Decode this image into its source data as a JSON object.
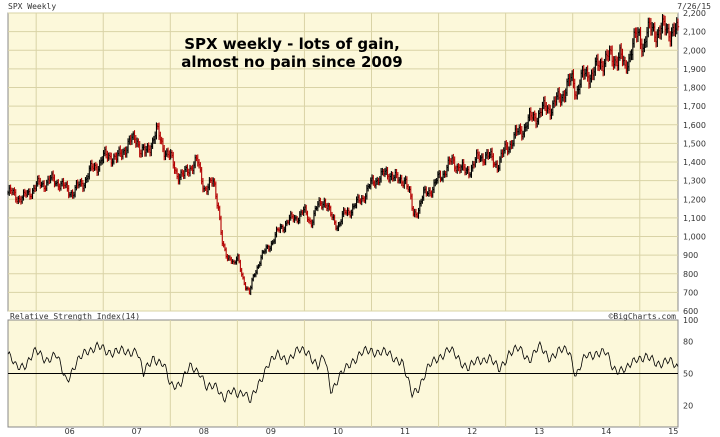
{
  "header": {
    "title": "SPX Weekly",
    "date": "7/26/15",
    "indicator": "Relative Strength Index(14)",
    "credit": "©BigCharts.com"
  },
  "annotation": [
    "SPX weekly - lots of gain,",
    "almost no pain since 2009"
  ],
  "colors": {
    "panel_bg": "#fcf8da",
    "grid": "#d9d3a6",
    "up": "#000000",
    "down": "#b30000",
    "rsi_line": "#000000",
    "rsi_ref": "#000000"
  },
  "chart_data": [
    {
      "type": "candlestick",
      "title": "SPX Weekly",
      "x_ticks": [
        "06",
        "07",
        "08",
        "09",
        "10",
        "11",
        "12",
        "13",
        "14",
        "15"
      ],
      "y_ticks": [
        600,
        700,
        800,
        900,
        1000,
        1100,
        1200,
        1300,
        1400,
        1500,
        1600,
        1700,
        1800,
        1900,
        2000,
        2100,
        2200
      ],
      "y_tick_labels": [
        "600",
        "700",
        "800",
        "900",
        "1,000",
        "1,100",
        "1,200",
        "1,300",
        "1,400",
        "1,500",
        "1,600",
        "1,700",
        "1,800",
        "1,900",
        "2,000",
        "2,100",
        "2,200"
      ],
      "ylim": [
        600,
        2200
      ],
      "x_start": 2005.58,
      "x_end": 2015.57,
      "series": [
        {
          "x": [
            2005.58,
            2005.7,
            2005.8,
            2005.9,
            2006.0,
            2006.1,
            2006.2,
            2006.33,
            2006.45,
            2006.55,
            2006.7,
            2006.8,
            2006.9,
            2007.0,
            2007.1,
            2007.2,
            2007.3,
            2007.4,
            2007.5,
            2007.55,
            2007.62,
            2007.75,
            2007.8,
            2007.9,
            2008.0,
            2008.1,
            2008.2,
            2008.3,
            2008.4,
            2008.5,
            2008.55,
            2008.65,
            2008.72,
            2008.78,
            2008.85,
            2008.9,
            2008.95,
            2009.0,
            2009.05,
            2009.12,
            2009.18,
            2009.25,
            2009.33,
            2009.45,
            2009.55,
            2009.65,
            2009.75,
            2009.9,
            2010.0,
            2010.1,
            2010.2,
            2010.3,
            2010.4,
            2010.5,
            2010.6,
            2010.7,
            2010.8,
            2010.9,
            2011.0,
            2011.1,
            2011.2,
            2011.3,
            2011.4,
            2011.5,
            2011.58,
            2011.62,
            2011.7,
            2011.78,
            2011.85,
            2011.92,
            2012.0,
            2012.1,
            2012.2,
            2012.3,
            2012.4,
            2012.5,
            2012.6,
            2012.7,
            2012.8,
            2012.88,
            2012.95,
            2013.0,
            2013.1,
            2013.2,
            2013.3,
            2013.4,
            2013.5,
            2013.6,
            2013.7,
            2013.8,
            2013.9,
            2014.0,
            2014.05,
            2014.1,
            2014.2,
            2014.3,
            2014.4,
            2014.5,
            2014.6,
            2014.7,
            2014.78,
            2014.82,
            2014.9,
            2015.0,
            2015.05,
            2015.1,
            2015.2,
            2015.3,
            2015.4,
            2015.5,
            2015.57
          ],
          "close": [
            1235,
            1220,
            1200,
            1240,
            1270,
            1285,
            1300,
            1295,
            1250,
            1240,
            1290,
            1350,
            1380,
            1420,
            1440,
            1410,
            1470,
            1500,
            1540,
            1460,
            1440,
            1530,
            1560,
            1480,
            1420,
            1340,
            1320,
            1380,
            1400,
            1270,
            1260,
            1290,
            1160,
            940,
            880,
            900,
            850,
            880,
            820,
            740,
            690,
            800,
            870,
            940,
            990,
            1050,
            1080,
            1110,
            1130,
            1080,
            1160,
            1200,
            1100,
            1060,
            1120,
            1150,
            1180,
            1230,
            1280,
            1320,
            1330,
            1340,
            1290,
            1320,
            1200,
            1120,
            1150,
            1220,
            1250,
            1260,
            1310,
            1360,
            1400,
            1380,
            1340,
            1380,
            1420,
            1440,
            1410,
            1390,
            1430,
            1470,
            1520,
            1560,
            1600,
            1640,
            1660,
            1690,
            1700,
            1740,
            1800,
            1840,
            1780,
            1830,
            1870,
            1880,
            1920,
            1970,
            1940,
            1990,
            1880,
            1950,
            2050,
            2070,
            2030,
            2090,
            2110,
            2100,
            2120,
            2100,
            2090
          ]
        }
      ]
    },
    {
      "type": "line",
      "title": "Relative Strength Index(14)",
      "y_ticks": [
        20,
        50,
        80,
        100
      ],
      "ylim": [
        0,
        100
      ],
      "reference_line": 50,
      "series": [
        {
          "x": [
            2005.58,
            2005.7,
            2005.85,
            2006.0,
            2006.15,
            2006.3,
            2006.45,
            2006.6,
            2006.75,
            2006.9,
            2007.05,
            2007.2,
            2007.35,
            2007.5,
            2007.6,
            2007.75,
            2007.9,
            2008.0,
            2008.15,
            2008.3,
            2008.45,
            2008.55,
            2008.7,
            2008.8,
            2008.9,
            2009.0,
            2009.1,
            2009.2,
            2009.3,
            2009.45,
            2009.6,
            2009.75,
            2009.9,
            2010.05,
            2010.2,
            2010.3,
            2010.4,
            2010.55,
            2010.7,
            2010.85,
            2011.0,
            2011.15,
            2011.3,
            2011.45,
            2011.6,
            2011.7,
            2011.85,
            2012.0,
            2012.15,
            2012.3,
            2012.45,
            2012.6,
            2012.75,
            2012.9,
            2013.05,
            2013.2,
            2013.35,
            2013.5,
            2013.65,
            2013.8,
            2013.95,
            2014.05,
            2014.2,
            2014.35,
            2014.5,
            2014.6,
            2014.8,
            2014.95,
            2015.1,
            2015.25,
            2015.4,
            2015.57
          ],
          "values": [
            68,
            55,
            60,
            70,
            64,
            66,
            45,
            58,
            72,
            75,
            70,
            72,
            68,
            74,
            48,
            66,
            58,
            38,
            42,
            55,
            52,
            35,
            38,
            28,
            32,
            30,
            35,
            24,
            36,
            60,
            66,
            64,
            70,
            72,
            55,
            66,
            35,
            48,
            62,
            68,
            72,
            70,
            66,
            62,
            30,
            38,
            55,
            66,
            72,
            64,
            55,
            62,
            66,
            52,
            70,
            72,
            64,
            74,
            66,
            70,
            72,
            48,
            66,
            70,
            68,
            56,
            52,
            66,
            64,
            60,
            62,
            55
          ]
        }
      ]
    }
  ]
}
